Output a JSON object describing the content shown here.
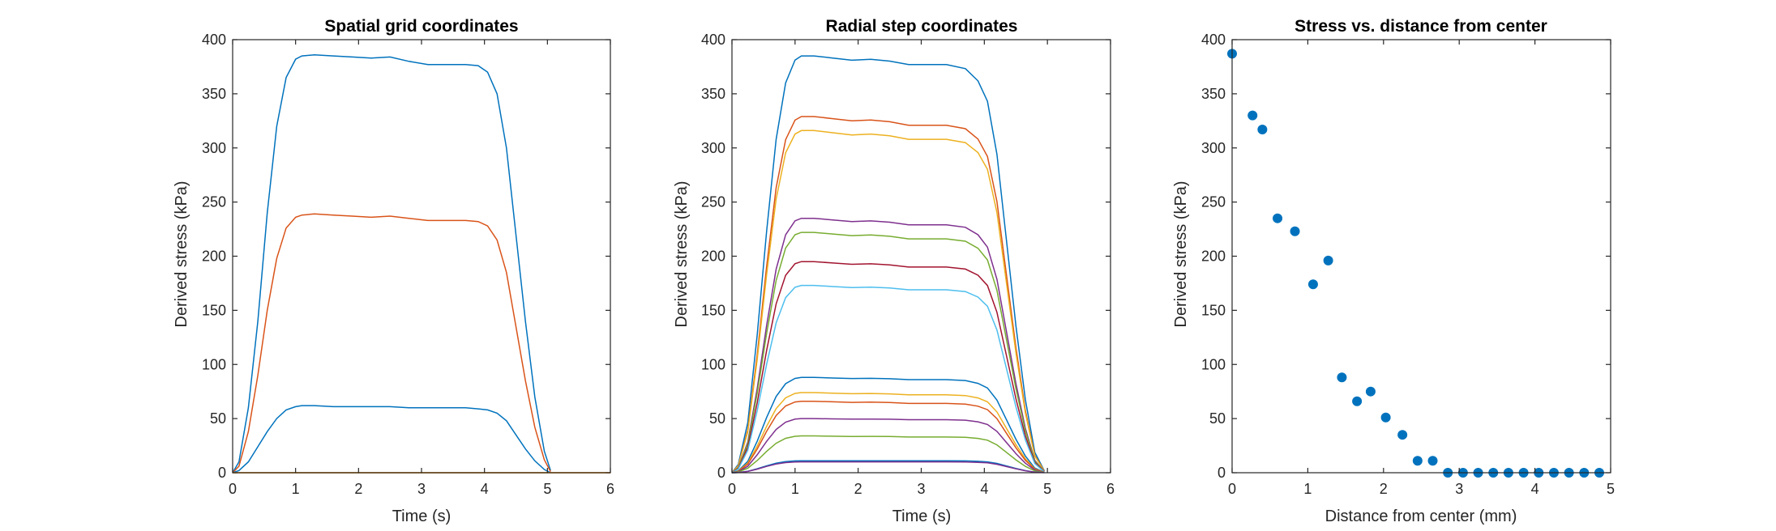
{
  "chart_data": [
    {
      "type": "line",
      "title": "Spatial grid coordinates",
      "xlabel": "Time (s)",
      "ylabel": "Derived stress (kPa)",
      "xlim": [
        0,
        6
      ],
      "ylim": [
        0,
        400
      ],
      "xticks": [
        "0",
        "1",
        "2",
        "3",
        "4",
        "5",
        "6"
      ],
      "yticks": [
        "0",
        "50",
        "100",
        "150",
        "200",
        "250",
        "300",
        "350",
        "400"
      ],
      "grid": false,
      "legend": "none",
      "series": [
        {
          "color": "#0072BD",
          "x": [
            0,
            0.1,
            0.25,
            0.4,
            0.55,
            0.7,
            0.85,
            1.0,
            1.1,
            1.3,
            1.6,
            1.9,
            2.2,
            2.5,
            2.8,
            3.1,
            3.4,
            3.7,
            3.9,
            4.05,
            4.2,
            4.35,
            4.5,
            4.65,
            4.8,
            4.95,
            5.05
          ],
          "y": [
            0,
            10,
            60,
            140,
            240,
            320,
            365,
            382,
            385,
            386,
            385,
            384,
            383,
            384,
            380,
            377,
            377,
            377,
            376,
            370,
            350,
            300,
            220,
            140,
            70,
            20,
            2
          ]
        },
        {
          "color": "#D95319",
          "x": [
            0,
            0.1,
            0.25,
            0.4,
            0.55,
            0.7,
            0.85,
            1.0,
            1.1,
            1.3,
            1.6,
            1.9,
            2.2,
            2.5,
            2.8,
            3.1,
            3.4,
            3.7,
            3.9,
            4.05,
            4.2,
            4.35,
            4.5,
            4.65,
            4.8,
            4.95,
            5.05
          ],
          "y": [
            0,
            6,
            38,
            90,
            150,
            198,
            226,
            236,
            238,
            239,
            238,
            237,
            236,
            237,
            235,
            233,
            233,
            233,
            232,
            228,
            215,
            185,
            135,
            85,
            42,
            12,
            1
          ]
        },
        {
          "color": "#0072BD",
          "x": [
            0,
            0.1,
            0.25,
            0.4,
            0.55,
            0.7,
            0.85,
            1.0,
            1.1,
            1.3,
            1.6,
            1.9,
            2.2,
            2.5,
            2.8,
            3.1,
            3.4,
            3.7,
            3.9,
            4.05,
            4.2,
            4.35,
            4.5,
            4.65,
            4.8,
            4.95,
            5.05
          ],
          "y": [
            0,
            2,
            10,
            24,
            38,
            50,
            58,
            61,
            62,
            62,
            61,
            61,
            61,
            61,
            60,
            60,
            60,
            60,
            59,
            58,
            55,
            48,
            35,
            22,
            11,
            3,
            0
          ]
        },
        {
          "color": "#D95319",
          "x": [
            0,
            6
          ],
          "y": [
            0,
            0
          ]
        },
        {
          "color": "#EDB120",
          "x": [
            0,
            6
          ],
          "y": [
            0,
            0
          ]
        }
      ]
    },
    {
      "type": "line",
      "title": "Radial step coordinates",
      "xlabel": "Time (s)",
      "ylabel": "Derived stress (kPa)",
      "xlim": [
        0,
        6
      ],
      "ylim": [
        0,
        400
      ],
      "xticks": [
        "0",
        "1",
        "2",
        "3",
        "4",
        "5",
        "6"
      ],
      "yticks": [
        "0",
        "50",
        "100",
        "150",
        "200",
        "250",
        "300",
        "350",
        "400"
      ],
      "grid": false,
      "legend": "none",
      "plateaus": [
        385,
        329,
        316,
        235,
        222,
        195,
        173,
        88,
        74,
        66,
        50,
        34,
        11,
        10
      ],
      "plateau_dips": [
        8,
        8,
        8,
        6,
        6,
        5,
        4,
        2,
        2,
        2,
        1,
        1,
        0,
        0
      ],
      "colors": [
        "#0072BD",
        "#D95319",
        "#EDB120",
        "#7E2F8E",
        "#77AC30",
        "#A2142F",
        "#4DBEEE",
        "#0072BD",
        "#EDB120",
        "#D95319",
        "#7E2F8E",
        "#77AC30",
        "#0072BD",
        "#7E2F8E"
      ]
    },
    {
      "type": "scatter",
      "title": "Stress vs. distance from center",
      "xlabel": "Distance from center (mm)",
      "ylabel": "Derived stress (kPa)",
      "xlim": [
        0,
        5
      ],
      "ylim": [
        0,
        400
      ],
      "xticks": [
        "0",
        "1",
        "2",
        "3",
        "4",
        "5"
      ],
      "yticks": [
        "0",
        "50",
        "100",
        "150",
        "200",
        "250",
        "300",
        "350",
        "400"
      ],
      "grid": false,
      "legend": "none",
      "series": [
        {
          "color": "#0072BD",
          "x": [
            0,
            0.27,
            0.4,
            0.6,
            0.83,
            1.07,
            1.27,
            1.45,
            1.65,
            1.83,
            2.03,
            2.25,
            2.45,
            2.65,
            2.85,
            3.05,
            3.25,
            3.45,
            3.65,
            3.85,
            4.05,
            4.25,
            4.45,
            4.65,
            4.85
          ],
          "y": [
            387,
            330,
            317,
            235,
            223,
            174,
            196,
            88,
            66,
            75,
            51,
            35,
            11,
            11,
            0,
            0,
            0,
            0,
            0,
            0,
            0,
            0,
            0,
            0,
            0
          ]
        }
      ]
    }
  ]
}
